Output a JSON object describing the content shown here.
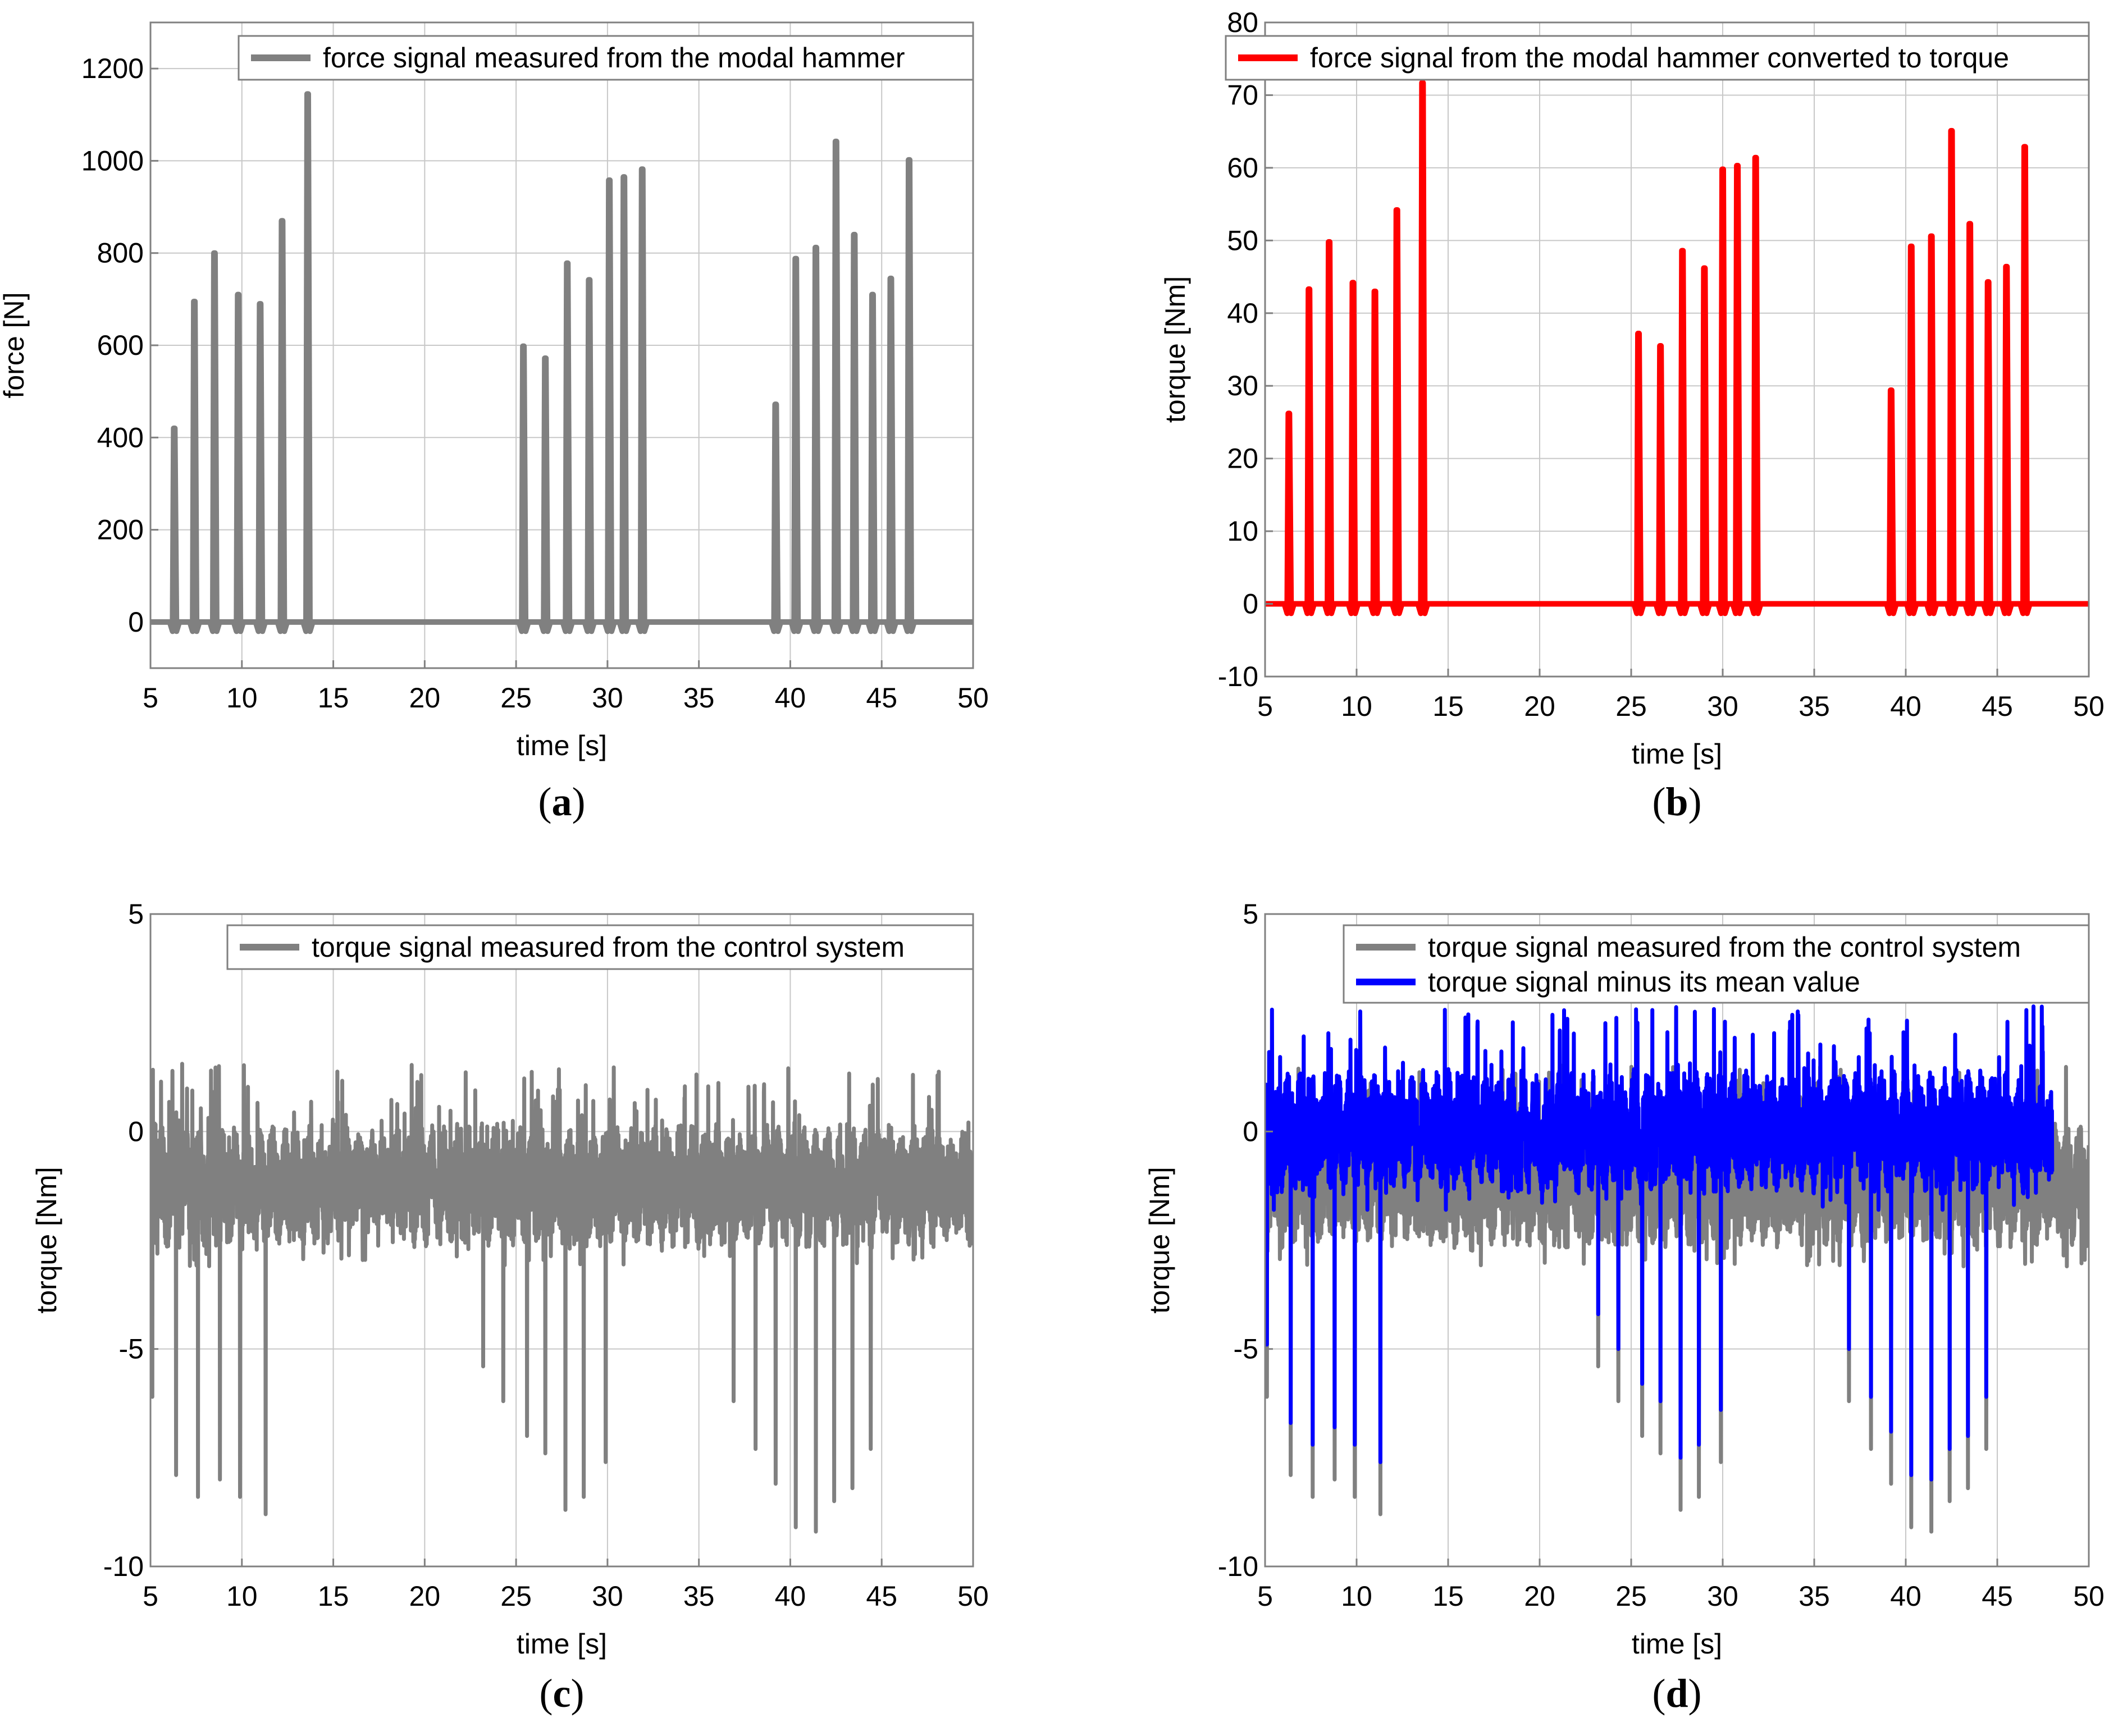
{
  "chart_data": [
    {
      "type": "line",
      "panel_label": "a",
      "xlabel": "time [s]",
      "ylabel": "force [N]",
      "xlim": [
        5,
        50
      ],
      "ylim": [
        -100,
        1300
      ],
      "xticks": [
        5,
        10,
        15,
        20,
        25,
        30,
        35,
        40,
        45,
        50
      ],
      "yticks": [
        0,
        200,
        400,
        600,
        800,
        1000,
        1200
      ],
      "grid": true,
      "legend_position": "top-right",
      "signal_kind": "impulses",
      "series": [
        {
          "name": "force signal measured from the modal hammer",
          "color": "#808080",
          "baseline": 0,
          "undershoot": -20,
          "impulses": [
            {
              "t": 6.3,
              "v": 420
            },
            {
              "t": 7.4,
              "v": 695
            },
            {
              "t": 8.5,
              "v": 800
            },
            {
              "t": 9.8,
              "v": 710
            },
            {
              "t": 11.0,
              "v": 690
            },
            {
              "t": 12.2,
              "v": 870
            },
            {
              "t": 13.6,
              "v": 1145
            },
            {
              "t": 25.4,
              "v": 598
            },
            {
              "t": 26.6,
              "v": 572
            },
            {
              "t": 27.8,
              "v": 778
            },
            {
              "t": 29.0,
              "v": 742
            },
            {
              "t": 30.1,
              "v": 958
            },
            {
              "t": 30.9,
              "v": 965
            },
            {
              "t": 31.9,
              "v": 982
            },
            {
              "t": 39.2,
              "v": 472
            },
            {
              "t": 40.3,
              "v": 788
            },
            {
              "t": 41.4,
              "v": 812
            },
            {
              "t": 42.5,
              "v": 1042
            },
            {
              "t": 43.5,
              "v": 840
            },
            {
              "t": 44.5,
              "v": 710
            },
            {
              "t": 45.5,
              "v": 745
            },
            {
              "t": 46.5,
              "v": 1002
            }
          ]
        }
      ]
    },
    {
      "type": "line",
      "panel_label": "b",
      "xlabel": "time [s]",
      "ylabel": "torque [Nm]",
      "xlim": [
        5,
        50
      ],
      "ylim": [
        -10,
        80
      ],
      "xticks": [
        5,
        10,
        15,
        20,
        25,
        30,
        35,
        40,
        45,
        50
      ],
      "yticks": [
        -10,
        0,
        10,
        20,
        30,
        40,
        50,
        60,
        70,
        80
      ],
      "grid": true,
      "legend_position": "top-right",
      "signal_kind": "impulses",
      "series": [
        {
          "name": "force signal from the modal hammer converted to torque",
          "color": "#ff0000",
          "baseline": 0,
          "undershoot": -1.3,
          "impulses": [
            {
              "t": 6.3,
              "v": 26.2
            },
            {
              "t": 7.4,
              "v": 43.3
            },
            {
              "t": 8.5,
              "v": 49.8
            },
            {
              "t": 9.8,
              "v": 44.2
            },
            {
              "t": 11.0,
              "v": 43.0
            },
            {
              "t": 12.2,
              "v": 54.2
            },
            {
              "t": 13.6,
              "v": 71.7
            },
            {
              "t": 25.4,
              "v": 37.2
            },
            {
              "t": 26.6,
              "v": 35.5
            },
            {
              "t": 27.8,
              "v": 48.6
            },
            {
              "t": 29.0,
              "v": 46.2
            },
            {
              "t": 30.0,
              "v": 59.8
            },
            {
              "t": 30.8,
              "v": 60.3
            },
            {
              "t": 31.8,
              "v": 61.4
            },
            {
              "t": 39.2,
              "v": 29.4
            },
            {
              "t": 40.3,
              "v": 49.2
            },
            {
              "t": 41.4,
              "v": 50.6
            },
            {
              "t": 42.5,
              "v": 65.1
            },
            {
              "t": 43.5,
              "v": 52.3
            },
            {
              "t": 44.5,
              "v": 44.3
            },
            {
              "t": 45.5,
              "v": 46.4
            },
            {
              "t": 46.5,
              "v": 62.9
            }
          ]
        }
      ]
    },
    {
      "type": "line",
      "panel_label": "c",
      "xlabel": "time [s]",
      "ylabel": "torque [Nm]",
      "xlim": [
        5,
        50
      ],
      "ylim": [
        -10,
        5
      ],
      "xticks": [
        5,
        10,
        15,
        20,
        25,
        30,
        35,
        40,
        45,
        50
      ],
      "yticks": [
        -10,
        -5,
        0,
        5
      ],
      "grid": true,
      "legend_position": "top-right",
      "signal_kind": "noise",
      "series": [
        {
          "name": "torque signal measured from the control system",
          "color": "#808080",
          "mean": -1.25,
          "band": [
            -3.1,
            1.6
          ],
          "dips": [
            {
              "t": 5.1,
              "v": -6.1
            },
            {
              "t": 6.4,
              "v": -7.9
            },
            {
              "t": 7.6,
              "v": -8.4
            },
            {
              "t": 8.8,
              "v": -8.0
            },
            {
              "t": 9.9,
              "v": -8.4
            },
            {
              "t": 11.3,
              "v": -8.8
            },
            {
              "t": 23.2,
              "v": -5.4
            },
            {
              "t": 24.3,
              "v": -6.2
            },
            {
              "t": 25.6,
              "v": -7.0
            },
            {
              "t": 26.6,
              "v": -7.4
            },
            {
              "t": 27.7,
              "v": -8.7
            },
            {
              "t": 28.7,
              "v": -8.4
            },
            {
              "t": 29.9,
              "v": -7.6
            },
            {
              "t": 36.9,
              "v": -6.2
            },
            {
              "t": 38.1,
              "v": -7.3
            },
            {
              "t": 39.2,
              "v": -8.1
            },
            {
              "t": 40.3,
              "v": -9.1
            },
            {
              "t": 41.4,
              "v": -9.2
            },
            {
              "t": 42.4,
              "v": -8.5
            },
            {
              "t": 43.4,
              "v": -8.2
            },
            {
              "t": 44.4,
              "v": -7.3
            }
          ]
        }
      ]
    },
    {
      "type": "line",
      "panel_label": "d",
      "xlabel": "time [s]",
      "ylabel": "torque [Nm]",
      "xlim": [
        5,
        50
      ],
      "ylim": [
        -10,
        5
      ],
      "xticks": [
        5,
        10,
        15,
        20,
        25,
        30,
        35,
        40,
        45,
        50
      ],
      "yticks": [
        -10,
        -5,
        0,
        5
      ],
      "grid": true,
      "legend_position": "top-right",
      "signal_kind": "noise",
      "series": [
        {
          "name": "torque signal measured from the control system",
          "color": "#808080",
          "mean": -1.25,
          "band": [
            -3.1,
            1.6
          ],
          "dips": [
            {
              "t": 5.1,
              "v": -6.1
            },
            {
              "t": 6.4,
              "v": -7.9
            },
            {
              "t": 7.6,
              "v": -8.4
            },
            {
              "t": 8.8,
              "v": -8.0
            },
            {
              "t": 9.9,
              "v": -8.4
            },
            {
              "t": 11.3,
              "v": -8.8
            },
            {
              "t": 23.2,
              "v": -5.4
            },
            {
              "t": 24.3,
              "v": -6.2
            },
            {
              "t": 25.6,
              "v": -7.0
            },
            {
              "t": 26.6,
              "v": -7.4
            },
            {
              "t": 27.7,
              "v": -8.7
            },
            {
              "t": 28.7,
              "v": -8.4
            },
            {
              "t": 29.9,
              "v": -7.6
            },
            {
              "t": 36.9,
              "v": -6.2
            },
            {
              "t": 38.1,
              "v": -7.3
            },
            {
              "t": 39.2,
              "v": -8.1
            },
            {
              "t": 40.3,
              "v": -9.1
            },
            {
              "t": 41.4,
              "v": -9.2
            },
            {
              "t": 42.4,
              "v": -8.5
            },
            {
              "t": 43.4,
              "v": -8.2
            },
            {
              "t": 44.4,
              "v": -7.3
            }
          ]
        },
        {
          "name": "torque signal minus its mean value",
          "color": "#0000ff",
          "mean": 0,
          "band": [
            -1.8,
            3.0
          ],
          "t_end": 48,
          "dips": [
            {
              "t": 5.1,
              "v": -4.9
            },
            {
              "t": 6.4,
              "v": -6.7
            },
            {
              "t": 7.6,
              "v": -7.2
            },
            {
              "t": 8.8,
              "v": -6.8
            },
            {
              "t": 9.9,
              "v": -7.2
            },
            {
              "t": 11.3,
              "v": -7.6
            },
            {
              "t": 23.2,
              "v": -4.2
            },
            {
              "t": 24.3,
              "v": -5.0
            },
            {
              "t": 25.6,
              "v": -5.8
            },
            {
              "t": 26.6,
              "v": -6.2
            },
            {
              "t": 27.7,
              "v": -7.5
            },
            {
              "t": 28.7,
              "v": -7.2
            },
            {
              "t": 29.9,
              "v": -6.4
            },
            {
              "t": 36.9,
              "v": -5.0
            },
            {
              "t": 38.1,
              "v": -6.1
            },
            {
              "t": 39.2,
              "v": -6.9
            },
            {
              "t": 40.3,
              "v": -7.9
            },
            {
              "t": 41.4,
              "v": -8.0
            },
            {
              "t": 42.4,
              "v": -7.3
            },
            {
              "t": 43.4,
              "v": -7.0
            },
            {
              "t": 44.4,
              "v": -6.1
            }
          ]
        }
      ]
    }
  ]
}
